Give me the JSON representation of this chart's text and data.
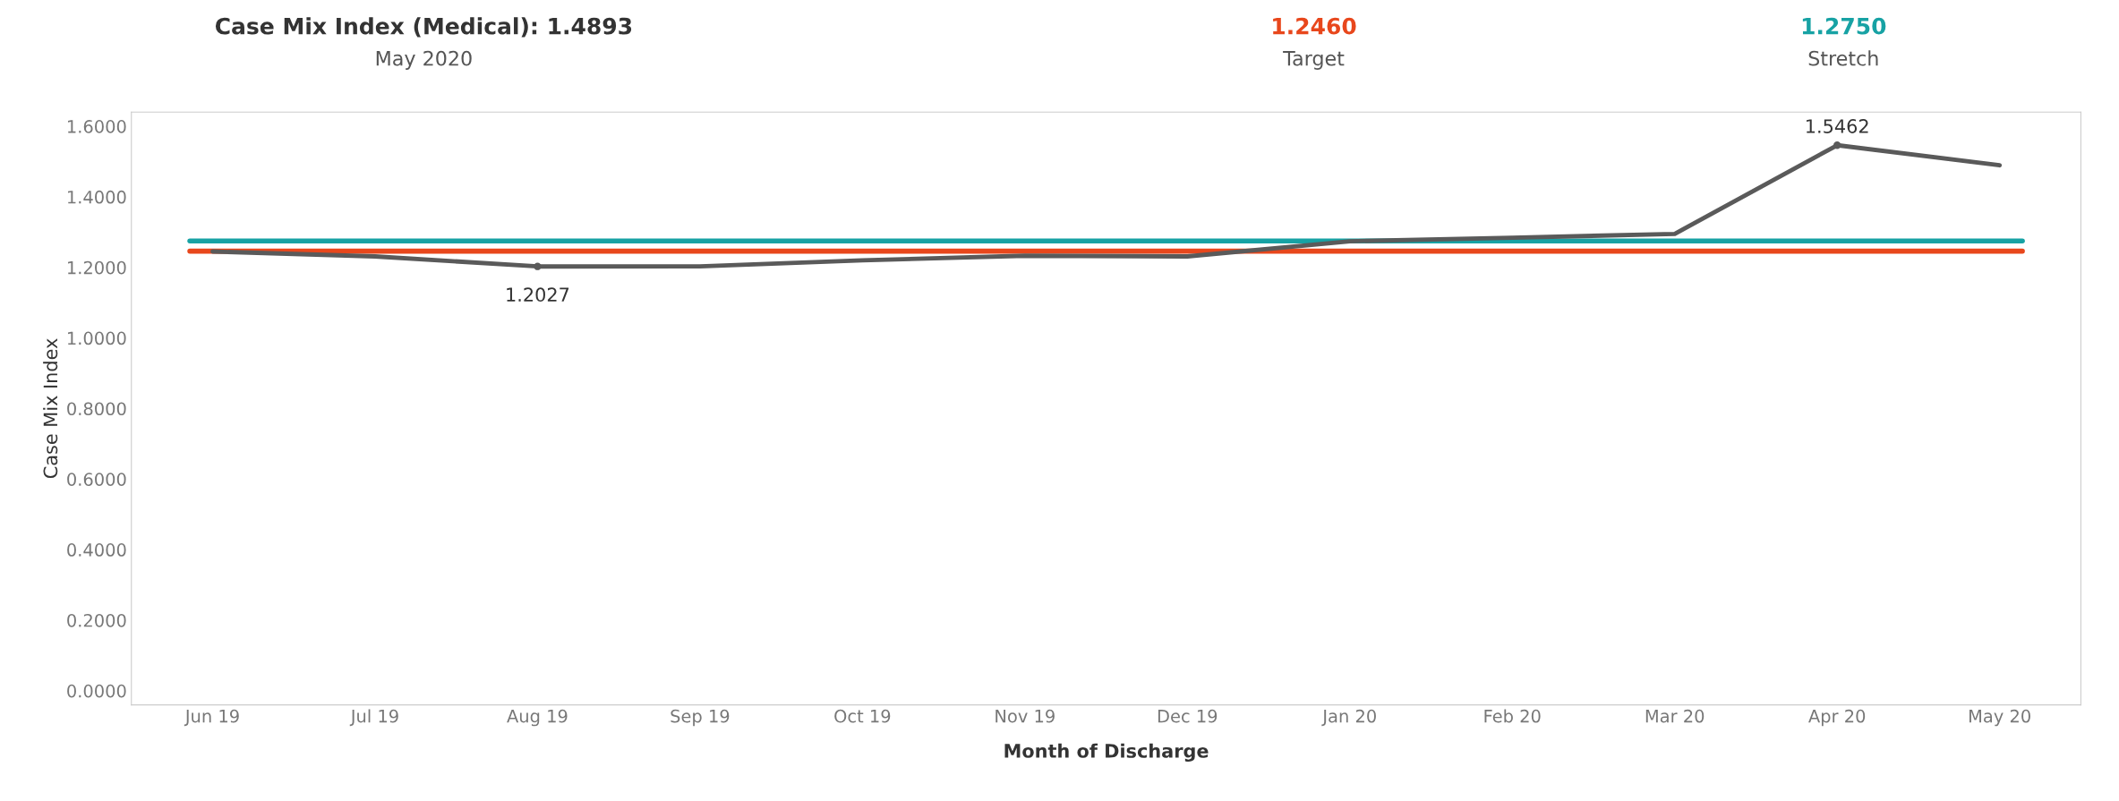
{
  "chart_data": {
    "type": "line",
    "title": "Case Mix Index (Medical): 1.4893",
    "subtitle": "May 2020",
    "xlabel": "Month of Discharge",
    "ylabel": "Case Mix Index",
    "categories": [
      "Jun 19",
      "Jul 19",
      "Aug 19",
      "Sep 19",
      "Oct 19",
      "Nov 19",
      "Dec 19",
      "Jan 20",
      "Feb 20",
      "Mar 20",
      "Apr 20",
      "May 20"
    ],
    "series": [
      {
        "color": "#5a5a5a",
        "values": [
          1.245,
          1.231,
          1.2027,
          1.203,
          1.22,
          1.233,
          1.231,
          1.274,
          1.284,
          1.295,
          1.5462,
          1.4893
        ],
        "value_labels": [
          null,
          null,
          "1.2027",
          null,
          null,
          null,
          null,
          null,
          null,
          null,
          "1.5462",
          null
        ]
      }
    ],
    "ref_lines": [
      {
        "axis": "y",
        "value": 1.246,
        "color": "#e8471c"
      },
      {
        "axis": "y",
        "value": 1.275,
        "color": "#17a2a4"
      }
    ],
    "annotations": [
      "1.2460",
      "Target",
      "1.2750",
      "Stretch"
    ],
    "ylim": [
      -0.04,
      1.64
    ],
    "yticks": [
      {
        "value": 0,
        "label": "0.0000"
      },
      {
        "value": 0.2,
        "label": "0.2000"
      },
      {
        "value": 0.4,
        "label": "0.4000"
      },
      {
        "value": 0.6,
        "label": "0.6000"
      },
      {
        "value": 0.8,
        "label": "0.8000"
      },
      {
        "value": 1.0,
        "label": "1.0000"
      },
      {
        "value": 1.2,
        "label": "1.2000"
      },
      {
        "value": 1.4,
        "label": "1.4000"
      },
      {
        "value": 1.6,
        "label": "1.6000"
      }
    ],
    "grid": false,
    "legend": false,
    "marker": "none",
    "line_style": "solid"
  }
}
